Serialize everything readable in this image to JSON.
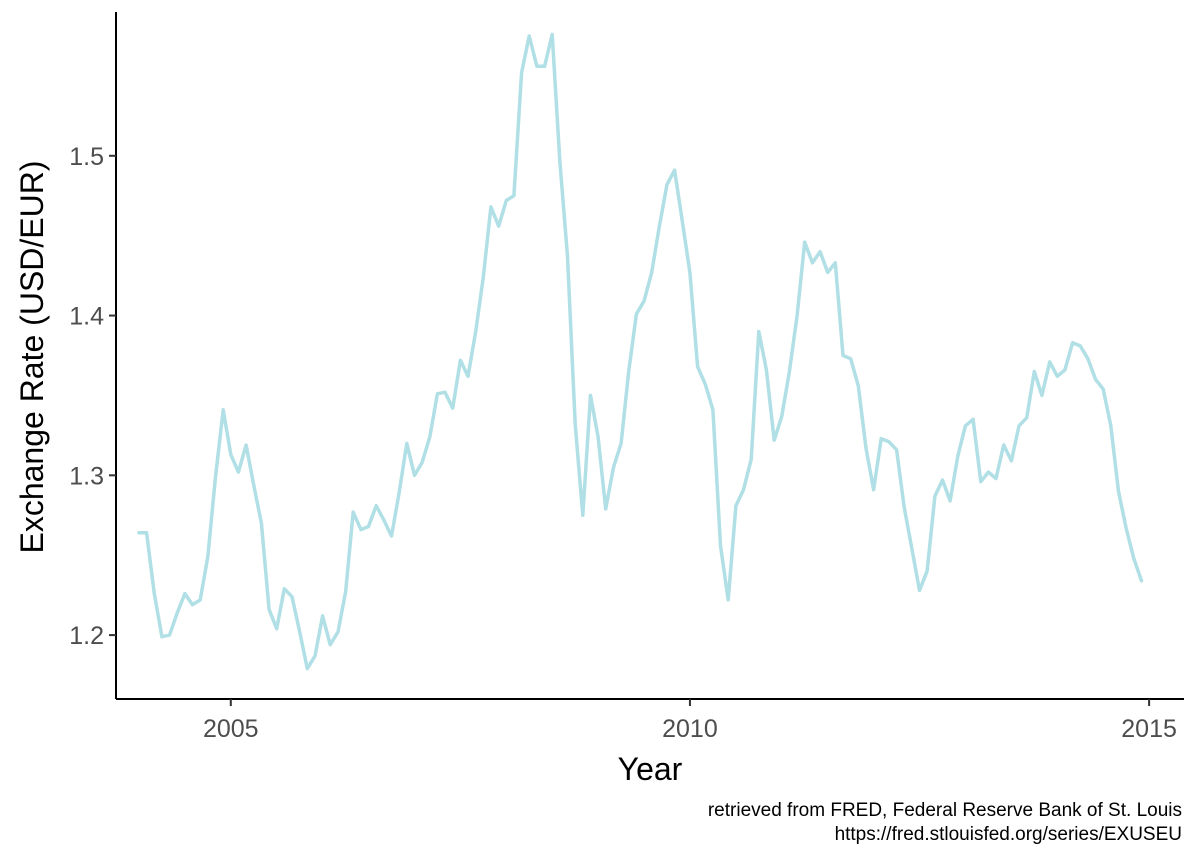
{
  "chart_data": {
    "type": "line",
    "xlabel": "Year",
    "ylabel": "Exchange Rate (USD/EUR)",
    "xlim": [
      2003.75,
      2015.38
    ],
    "ylim": [
      1.16,
      1.59
    ],
    "x_ticks": [
      2005,
      2010,
      2015
    ],
    "x_tick_labels": [
      "2005",
      "2010",
      "2015"
    ],
    "y_ticks": [
      1.2,
      1.3,
      1.4,
      1.5
    ],
    "y_tick_labels": [
      "1.2",
      "1.3",
      "1.4",
      "1.5"
    ],
    "grid": false,
    "legend": "none",
    "line_color": "#b0dfe5",
    "series": [
      {
        "x": [
          2004.0,
          2004.083,
          2004.167,
          2004.25,
          2004.333,
          2004.417,
          2004.5,
          2004.583,
          2004.667,
          2004.75,
          2004.833,
          2004.917,
          2005.0,
          2005.083,
          2005.167,
          2005.25,
          2005.333,
          2005.417,
          2005.5,
          2005.583,
          2005.667,
          2005.75,
          2005.833,
          2005.917,
          2006.0,
          2006.083,
          2006.167,
          2006.25,
          2006.333,
          2006.417,
          2006.5,
          2006.583,
          2006.667,
          2006.75,
          2006.833,
          2006.917,
          2007.0,
          2007.083,
          2007.167,
          2007.25,
          2007.333,
          2007.417,
          2007.5,
          2007.583,
          2007.667,
          2007.75,
          2007.833,
          2007.917,
          2008.0,
          2008.083,
          2008.167,
          2008.25,
          2008.333,
          2008.417,
          2008.5,
          2008.583,
          2008.667,
          2008.75,
          2008.833,
          2008.917,
          2009.0,
          2009.083,
          2009.167,
          2009.25,
          2009.333,
          2009.417,
          2009.5,
          2009.583,
          2009.667,
          2009.75,
          2009.833,
          2009.917,
          2010.0,
          2010.083,
          2010.167,
          2010.25,
          2010.333,
          2010.417,
          2010.5,
          2010.583,
          2010.667,
          2010.75,
          2010.833,
          2010.917,
          2011.0,
          2011.083,
          2011.167,
          2011.25,
          2011.333,
          2011.417,
          2011.5,
          2011.583,
          2011.667,
          2011.75,
          2011.833,
          2011.917,
          2012.0,
          2012.083,
          2012.167,
          2012.25,
          2012.333,
          2012.417,
          2012.5,
          2012.583,
          2012.667,
          2012.75,
          2012.833,
          2012.917,
          2013.0,
          2013.083,
          2013.167,
          2013.25,
          2013.333,
          2013.417,
          2013.5,
          2013.583,
          2013.667,
          2013.75,
          2013.833,
          2013.917,
          2014.0,
          2014.083,
          2014.167,
          2014.25,
          2014.333,
          2014.417,
          2014.5,
          2014.583,
          2014.667,
          2014.75,
          2014.833,
          2014.917
        ],
        "y": [
          1.264,
          1.264,
          1.226,
          1.199,
          1.2,
          1.214,
          1.226,
          1.219,
          1.222,
          1.249,
          1.299,
          1.341,
          1.313,
          1.302,
          1.319,
          1.294,
          1.27,
          1.216,
          1.204,
          1.229,
          1.224,
          1.202,
          1.179,
          1.187,
          1.212,
          1.194,
          1.202,
          1.227,
          1.277,
          1.266,
          1.268,
          1.281,
          1.272,
          1.262,
          1.289,
          1.32,
          1.3,
          1.308,
          1.324,
          1.351,
          1.352,
          1.342,
          1.372,
          1.362,
          1.39,
          1.424,
          1.468,
          1.456,
          1.472,
          1.475,
          1.552,
          1.575,
          1.556,
          1.556,
          1.576,
          1.497,
          1.437,
          1.332,
          1.275,
          1.35,
          1.324,
          1.279,
          1.305,
          1.32,
          1.365,
          1.401,
          1.409,
          1.427,
          1.456,
          1.482,
          1.491,
          1.459,
          1.427,
          1.368,
          1.357,
          1.341,
          1.256,
          1.222,
          1.281,
          1.291,
          1.31,
          1.39,
          1.366,
          1.322,
          1.337,
          1.365,
          1.4,
          1.446,
          1.433,
          1.44,
          1.427,
          1.433,
          1.375,
          1.373,
          1.356,
          1.317,
          1.291,
          1.323,
          1.321,
          1.316,
          1.28,
          1.254,
          1.228,
          1.24,
          1.287,
          1.297,
          1.284,
          1.312,
          1.331,
          1.335,
          1.296,
          1.302,
          1.298,
          1.319,
          1.309,
          1.331,
          1.336,
          1.365,
          1.35,
          1.371,
          1.362,
          1.366,
          1.383,
          1.381,
          1.373,
          1.36,
          1.354,
          1.331,
          1.29,
          1.267,
          1.248,
          1.234
        ]
      }
    ]
  },
  "caption": {
    "line1": "retrieved from FRED, Federal Reserve Bank of St. Louis",
    "line2": "https://fred.stlouisfed.org/series/EXUSEU"
  }
}
